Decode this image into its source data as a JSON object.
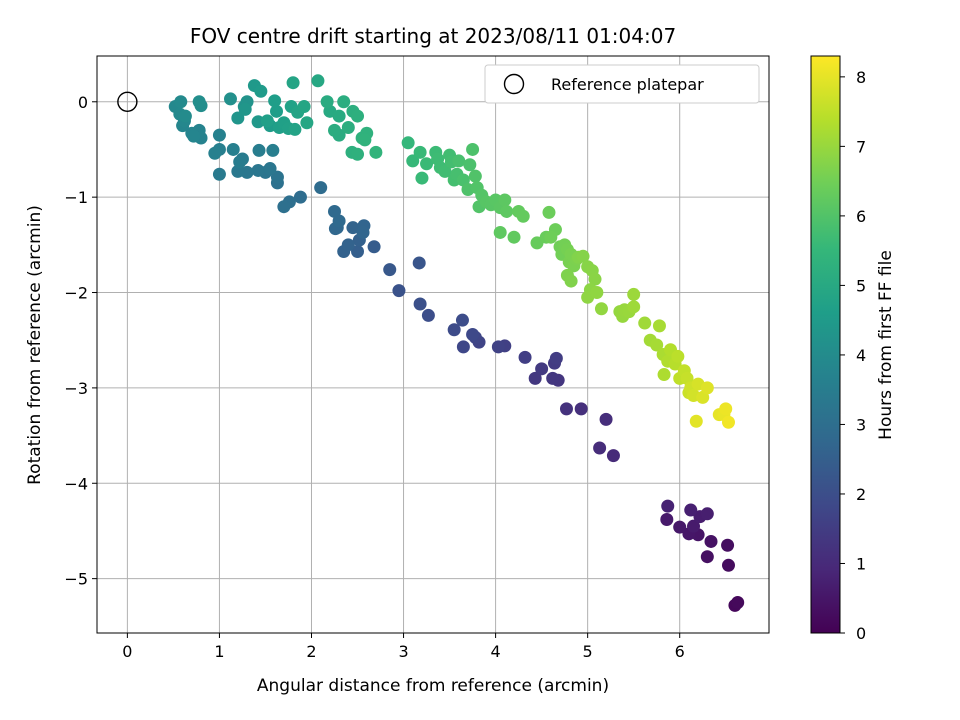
{
  "chart_data": {
    "type": "scatter",
    "title": "FOV centre drift starting at 2023/08/11 01:04:07",
    "xlabel": "Angular distance from reference (arcmin)",
    "ylabel": "Rotation from reference (arcmin)",
    "xlim": [
      -0.33,
      6.97
    ],
    "ylim": [
      -5.57,
      0.48
    ],
    "x_ticks": [
      0,
      1,
      2,
      3,
      4,
      5,
      6
    ],
    "y_ticks": [
      0,
      -1,
      -2,
      -3,
      -4,
      -5
    ],
    "x_tick_labels": [
      "0",
      "1",
      "2",
      "3",
      "4",
      "5",
      "6"
    ],
    "y_tick_labels": [
      "0",
      "−1",
      "−2",
      "−3",
      "−4",
      "−5"
    ],
    "grid": true,
    "legend": {
      "position": "top-right",
      "entries": [
        "Reference platepar"
      ]
    },
    "colorbar": {
      "label": "Hours from first FF file",
      "range": [
        0,
        8.3
      ],
      "ticks": [
        0,
        1,
        2,
        3,
        4,
        5,
        6,
        7,
        8
      ],
      "colormap": "viridis"
    },
    "reference": {
      "x": 0,
      "y": 0
    },
    "series": [
      {
        "points": [
          [
            6.6,
            -5.28,
            0.15
          ],
          [
            6.63,
            -5.25,
            0.18
          ],
          [
            6.53,
            -4.86,
            0.25
          ],
          [
            6.52,
            -4.65,
            0.3
          ],
          [
            6.3,
            -4.77,
            0.35
          ],
          [
            6.34,
            -4.61,
            0.4
          ],
          [
            6.2,
            -4.54,
            0.45
          ],
          [
            6.1,
            -4.53,
            0.5
          ],
          [
            6.0,
            -4.46,
            0.55
          ],
          [
            5.86,
            -4.38,
            0.6
          ],
          [
            6.15,
            -4.45,
            0.62
          ],
          [
            6.22,
            -4.35,
            0.66
          ],
          [
            6.3,
            -4.32,
            0.7
          ],
          [
            6.12,
            -4.28,
            0.74
          ],
          [
            5.87,
            -4.24,
            0.8
          ],
          [
            5.28,
            -3.71,
            1.0
          ],
          [
            5.13,
            -3.63,
            1.05
          ],
          [
            5.2,
            -3.33,
            1.1
          ],
          [
            4.93,
            -3.22,
            1.15
          ],
          [
            4.77,
            -3.22,
            1.2
          ],
          [
            4.68,
            -2.92,
            1.3
          ],
          [
            4.62,
            -2.9,
            1.35
          ],
          [
            4.43,
            -2.9,
            1.38
          ],
          [
            4.5,
            -2.8,
            1.42
          ],
          [
            4.64,
            -2.74,
            1.46
          ],
          [
            4.66,
            -2.69,
            1.5
          ],
          [
            4.32,
            -2.68,
            1.55
          ],
          [
            4.1,
            -2.56,
            1.6
          ],
          [
            4.03,
            -2.57,
            1.65
          ],
          [
            3.82,
            -2.52,
            1.7
          ],
          [
            3.78,
            -2.47,
            1.75
          ],
          [
            3.65,
            -2.57,
            1.8
          ],
          [
            3.75,
            -2.44,
            1.85
          ],
          [
            3.55,
            -2.39,
            1.9
          ],
          [
            3.64,
            -2.29,
            1.95
          ],
          [
            3.27,
            -2.24,
            2.0
          ],
          [
            3.18,
            -2.12,
            2.05
          ],
          [
            2.95,
            -1.98,
            2.1
          ],
          [
            3.17,
            -1.69,
            2.2
          ],
          [
            2.85,
            -1.76,
            2.3
          ],
          [
            2.68,
            -1.52,
            2.4
          ],
          [
            2.5,
            -1.57,
            2.5
          ],
          [
            2.52,
            -1.45,
            2.55
          ],
          [
            2.35,
            -1.57,
            2.6
          ],
          [
            2.4,
            -1.5,
            2.62
          ],
          [
            2.45,
            -1.32,
            2.65
          ],
          [
            2.57,
            -1.3,
            2.68
          ],
          [
            2.56,
            -1.37,
            2.7
          ],
          [
            2.28,
            -1.32,
            2.75
          ],
          [
            2.26,
            -1.33,
            2.78
          ],
          [
            2.25,
            -1.15,
            2.82
          ],
          [
            2.3,
            -1.25,
            2.85
          ],
          [
            2.1,
            -0.9,
            2.9
          ],
          [
            1.88,
            -1.0,
            2.95
          ],
          [
            1.76,
            -1.05,
            3.0
          ],
          [
            1.7,
            -1.1,
            3.05
          ],
          [
            1.63,
            -0.85,
            3.1
          ],
          [
            1.63,
            -0.79,
            3.15
          ],
          [
            1.5,
            -0.74,
            3.2
          ],
          [
            1.42,
            -0.72,
            3.25
          ],
          [
            1.55,
            -0.7,
            3.28
          ],
          [
            1.3,
            -0.74,
            3.3
          ],
          [
            1.2,
            -0.73,
            3.35
          ],
          [
            1.0,
            -0.76,
            3.4
          ],
          [
            1.25,
            -0.6,
            3.45
          ],
          [
            1.22,
            -0.63,
            3.48
          ],
          [
            1.43,
            -0.51,
            3.5
          ],
          [
            1.58,
            -0.51,
            3.55
          ],
          [
            1.15,
            -0.5,
            3.58
          ],
          [
            1.0,
            -0.5,
            3.6
          ],
          [
            0.95,
            -0.54,
            3.62
          ],
          [
            1.0,
            -0.35,
            3.65
          ],
          [
            0.8,
            -0.38,
            3.7
          ],
          [
            0.78,
            -0.3,
            3.72
          ],
          [
            0.7,
            -0.33,
            3.75
          ],
          [
            0.72,
            -0.36,
            3.78
          ],
          [
            0.6,
            -0.25,
            3.8
          ],
          [
            0.62,
            -0.2,
            3.85
          ],
          [
            0.52,
            -0.05,
            3.9
          ],
          [
            0.57,
            -0.13,
            3.92
          ],
          [
            0.58,
            0.0,
            3.95
          ],
          [
            0.63,
            -0.15,
            4.0
          ],
          [
            0.8,
            -0.04,
            4.05
          ],
          [
            0.78,
            0.0,
            4.1
          ],
          [
            1.12,
            0.03,
            4.15
          ],
          [
            1.27,
            -0.05,
            4.2
          ],
          [
            1.3,
            0.0,
            4.25
          ],
          [
            1.2,
            -0.17,
            4.3
          ],
          [
            1.28,
            -0.08,
            4.35
          ],
          [
            1.42,
            -0.21,
            4.4
          ],
          [
            1.38,
            0.17,
            4.45
          ],
          [
            1.45,
            0.11,
            4.5
          ],
          [
            1.55,
            -0.25,
            4.55
          ],
          [
            1.62,
            -0.1,
            4.6
          ],
          [
            1.6,
            0.01,
            4.62
          ],
          [
            1.65,
            -0.27,
            4.65
          ],
          [
            1.52,
            -0.2,
            4.68
          ],
          [
            1.7,
            -0.22,
            4.7
          ],
          [
            1.75,
            -0.28,
            4.72
          ],
          [
            1.78,
            -0.05,
            4.75
          ],
          [
            1.82,
            -0.29,
            4.8
          ],
          [
            1.85,
            -0.11,
            4.82
          ],
          [
            1.8,
            0.2,
            4.85
          ],
          [
            1.92,
            -0.05,
            4.88
          ],
          [
            1.95,
            -0.22,
            4.92
          ],
          [
            2.07,
            0.22,
            4.95
          ],
          [
            2.2,
            -0.1,
            5.0
          ],
          [
            2.3,
            -0.15,
            5.05
          ],
          [
            2.17,
            0.0,
            5.08
          ],
          [
            2.3,
            -0.35,
            5.1
          ],
          [
            2.25,
            -0.3,
            5.12
          ],
          [
            2.35,
            0.0,
            5.15
          ],
          [
            2.4,
            -0.27,
            5.18
          ],
          [
            2.45,
            -0.1,
            5.2
          ],
          [
            2.5,
            -0.15,
            5.22
          ],
          [
            2.44,
            -0.53,
            5.25
          ],
          [
            2.5,
            -0.55,
            5.28
          ],
          [
            2.55,
            -0.38,
            5.3
          ],
          [
            2.6,
            -0.33,
            5.33
          ],
          [
            2.58,
            -0.4,
            5.36
          ],
          [
            2.7,
            -0.53,
            5.4
          ],
          [
            3.05,
            -0.43,
            5.5
          ],
          [
            3.1,
            -0.62,
            5.55
          ],
          [
            3.18,
            -0.53,
            5.58
          ],
          [
            3.2,
            -0.8,
            5.6
          ],
          [
            3.25,
            -0.65,
            5.62
          ],
          [
            3.35,
            -0.53,
            5.65
          ],
          [
            3.37,
            -0.6,
            5.68
          ],
          [
            3.4,
            -0.69,
            5.7
          ],
          [
            3.45,
            -0.73,
            5.72
          ],
          [
            3.5,
            -0.56,
            5.75
          ],
          [
            3.52,
            -0.63,
            5.78
          ],
          [
            3.55,
            -0.82,
            5.8
          ],
          [
            3.58,
            -0.76,
            5.82
          ],
          [
            3.6,
            -0.62,
            5.85
          ],
          [
            3.65,
            -0.82,
            5.88
          ],
          [
            3.72,
            -0.66,
            5.9
          ],
          [
            3.75,
            -0.5,
            5.92
          ],
          [
            3.7,
            -0.92,
            5.95
          ],
          [
            3.78,
            -0.78,
            5.98
          ],
          [
            3.8,
            -0.9,
            6.0
          ],
          [
            3.82,
            -1.1,
            6.02
          ],
          [
            3.85,
            -0.98,
            6.05
          ],
          [
            3.9,
            -1.05,
            6.08
          ],
          [
            3.95,
            -1.08,
            6.1
          ],
          [
            4.0,
            -1.03,
            6.12
          ],
          [
            4.05,
            -1.11,
            6.15
          ],
          [
            4.1,
            -1.03,
            6.18
          ],
          [
            4.12,
            -1.15,
            6.2
          ],
          [
            4.05,
            -1.37,
            6.22
          ],
          [
            4.2,
            -1.42,
            6.25
          ],
          [
            4.25,
            -1.15,
            6.28
          ],
          [
            4.3,
            -1.2,
            6.3
          ],
          [
            4.45,
            -1.48,
            6.35
          ],
          [
            4.55,
            -1.42,
            6.38
          ],
          [
            4.58,
            -1.16,
            6.4
          ],
          [
            4.65,
            -1.34,
            6.42
          ],
          [
            4.6,
            -1.42,
            6.45
          ],
          [
            4.7,
            -1.52,
            6.48
          ],
          [
            4.72,
            -1.6,
            6.5
          ],
          [
            4.75,
            -1.5,
            6.52
          ],
          [
            4.78,
            -1.55,
            6.55
          ],
          [
            4.8,
            -1.68,
            6.58
          ],
          [
            4.82,
            -1.6,
            6.6
          ],
          [
            4.85,
            -1.72,
            6.62
          ],
          [
            4.88,
            -1.65,
            6.65
          ],
          [
            4.78,
            -1.82,
            6.68
          ],
          [
            4.82,
            -1.88,
            6.7
          ],
          [
            4.9,
            -1.63,
            6.72
          ],
          [
            4.95,
            -1.62,
            6.75
          ],
          [
            5.0,
            -1.73,
            6.78
          ],
          [
            5.05,
            -1.77,
            6.8
          ],
          [
            5.08,
            -1.86,
            6.82
          ],
          [
            5.03,
            -1.97,
            6.85
          ],
          [
            5.0,
            -2.05,
            6.88
          ],
          [
            5.1,
            -2.0,
            6.9
          ],
          [
            5.15,
            -2.17,
            6.92
          ],
          [
            5.35,
            -2.2,
            6.95
          ],
          [
            5.38,
            -2.25,
            6.98
          ],
          [
            5.4,
            -2.18,
            7.0
          ],
          [
            5.45,
            -2.2,
            7.02
          ],
          [
            5.5,
            -2.02,
            7.05
          ],
          [
            5.5,
            -2.15,
            7.08
          ],
          [
            5.62,
            -2.32,
            7.1
          ],
          [
            5.68,
            -2.5,
            7.15
          ],
          [
            5.75,
            -2.55,
            7.18
          ],
          [
            5.78,
            -2.35,
            7.2
          ],
          [
            5.82,
            -2.65,
            7.25
          ],
          [
            5.83,
            -2.86,
            7.28
          ],
          [
            5.87,
            -2.72,
            7.32
          ],
          [
            5.9,
            -2.6,
            7.35
          ],
          [
            5.95,
            -2.75,
            7.4
          ],
          [
            5.98,
            -2.67,
            7.45
          ],
          [
            6.0,
            -2.9,
            7.5
          ],
          [
            6.05,
            -2.82,
            7.55
          ],
          [
            6.08,
            -2.9,
            7.6
          ],
          [
            6.1,
            -3.05,
            7.65
          ],
          [
            6.12,
            -3.0,
            7.7
          ],
          [
            6.15,
            -3.08,
            7.75
          ],
          [
            6.2,
            -2.96,
            7.8
          ],
          [
            6.25,
            -3.1,
            7.85
          ],
          [
            6.3,
            -3.0,
            7.9
          ],
          [
            6.18,
            -3.35,
            7.95
          ],
          [
            6.43,
            -3.28,
            8.0
          ],
          [
            6.48,
            -3.28,
            8.05
          ],
          [
            6.5,
            -3.22,
            8.1
          ],
          [
            6.53,
            -3.36,
            8.15
          ]
        ]
      }
    ]
  }
}
